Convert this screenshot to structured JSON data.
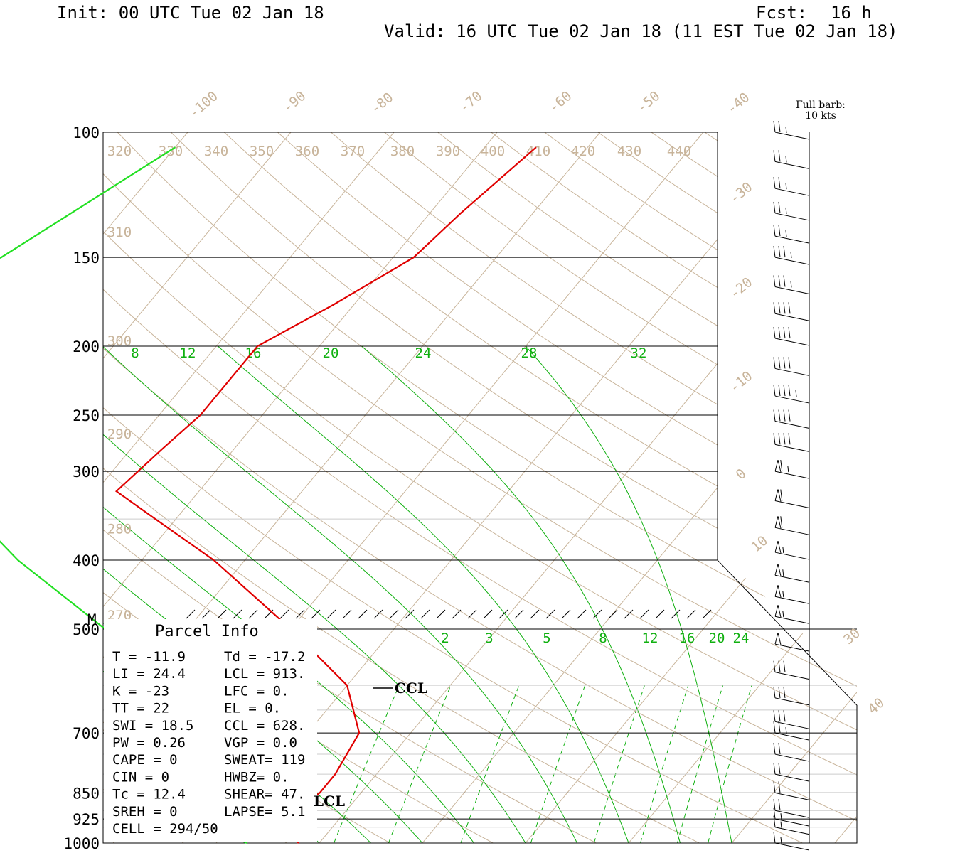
{
  "header": {
    "init": "Init: 00 UTC Tue 02 Jan 18",
    "fcst_label": "Fcst:",
    "fcst_value": "16 h",
    "valid": "Valid: 16 UTC Tue 02 Jan 18 (11 EST Tue 02 Jan 18)"
  },
  "barb_legend": {
    "line1": "Full barb:",
    "line2": "10 kts"
  },
  "parcel": {
    "title": "Parcel Info",
    "rows": [
      {
        "left": "T  =   -11.9",
        "right": "Td = -17.2"
      },
      {
        "left": "LI =    24.4",
        "right": "LCL =  913."
      },
      {
        "left": "K  =     -23",
        "right": "LFC =    0."
      },
      {
        "left": "TT =      22",
        "right": "EL  =    0."
      },
      {
        "left": "SWI =   18.5",
        "right": "CCL =  628."
      },
      {
        "left": "PW =    0.26",
        "right": "VGP =   0.0"
      },
      {
        "left": "CAPE =     0",
        "right": "SWEAT=  119"
      },
      {
        "left": "CIN =      0",
        "right": "HWBZ=    0."
      },
      {
        "left": "Tc =    12.4",
        "right": "SHEAR=  47."
      },
      {
        "left": "SREH =     0",
        "right": "LAPSE=  5.1"
      },
      {
        "left": "CELL = 294/50",
        "right": ""
      }
    ],
    "ccl_label": "CCL",
    "lcl_label": "LCL",
    "marker_m": "M"
  },
  "colors": {
    "temperature": "#e00000",
    "dewpoint": "#22e022",
    "isotherm": "#c8b49a",
    "mixing_ratio": "#10b010",
    "grid": "#000000"
  },
  "chart_data": {
    "type": "skew-t",
    "pressure_levels_labeled": [
      100,
      150,
      200,
      250,
      300,
      400,
      500,
      700,
      850,
      925,
      1000
    ],
    "isotherm_labels": [
      -100,
      -90,
      -80,
      -70,
      -60,
      -50,
      -40,
      -30,
      -20,
      -10,
      0,
      10,
      30,
      40
    ],
    "theta_labels": [
      {
        "value": "320",
        "p": 100
      },
      {
        "value": "330",
        "p": 100
      },
      {
        "value": "340",
        "p": 100
      },
      {
        "value": "350",
        "p": 100
      },
      {
        "value": "360",
        "p": 100
      },
      {
        "value": "370",
        "p": 100
      },
      {
        "value": "380",
        "p": 100
      },
      {
        "value": "390",
        "p": 100
      },
      {
        "value": "400",
        "p": 100
      },
      {
        "value": "410",
        "p": 100
      },
      {
        "value": "420",
        "p": 100
      },
      {
        "value": "430",
        "p": 100
      },
      {
        "value": "440",
        "p": 100
      },
      {
        "value": "310",
        "p": 130
      },
      {
        "value": "300",
        "p": 185
      },
      {
        "value": "290",
        "p": 250
      },
      {
        "value": "280",
        "p": 340
      },
      {
        "value": "270",
        "p": 450
      }
    ],
    "mixing_ratio_upper_labels": [
      "8",
      "12",
      "16",
      "20",
      "24",
      "28",
      "32"
    ],
    "mixing_ratio_lower_labels": [
      "2",
      "3",
      "5",
      "8",
      "12",
      "16",
      "20",
      "24"
    ],
    "temperature_profile": [
      {
        "p": 105,
        "t": -45
      },
      {
        "p": 130,
        "t": -47
      },
      {
        "p": 150,
        "t": -48
      },
      {
        "p": 175,
        "t": -52
      },
      {
        "p": 200,
        "t": -56
      },
      {
        "p": 250,
        "t": -56
      },
      {
        "p": 280,
        "t": -57
      },
      {
        "p": 320,
        "t": -58
      },
      {
        "p": 350,
        "t": -52
      },
      {
        "p": 400,
        "t": -43
      },
      {
        "p": 500,
        "t": -30
      },
      {
        "p": 600,
        "t": -20
      },
      {
        "p": 700,
        "t": -15
      },
      {
        "p": 800,
        "t": -14
      },
      {
        "p": 850,
        "t": -14
      },
      {
        "p": 900,
        "t": -15
      },
      {
        "p": 925,
        "t": -17
      },
      {
        "p": 1000,
        "t": -12
      }
    ],
    "dewpoint_profile": [
      {
        "p": 105,
        "t": -80
      },
      {
        "p": 150,
        "t": -88
      },
      {
        "p": 200,
        "t": -102
      },
      {
        "p": 240,
        "t": -92
      },
      {
        "p": 280,
        "t": -85
      },
      {
        "p": 320,
        "t": -74
      },
      {
        "p": 400,
        "t": -62
      },
      {
        "p": 500,
        "t": -48
      },
      {
        "p": 600,
        "t": -36
      },
      {
        "p": 700,
        "t": -30
      },
      {
        "p": 800,
        "t": -27
      },
      {
        "p": 850,
        "t": -28
      },
      {
        "p": 925,
        "t": -25
      },
      {
        "p": 1000,
        "t": -17
      }
    ],
    "winds": [
      {
        "p": 100,
        "spd": 25
      },
      {
        "p": 110,
        "spd": 25
      },
      {
        "p": 120,
        "spd": 25
      },
      {
        "p": 130,
        "spd": 25
      },
      {
        "p": 140,
        "spd": 25
      },
      {
        "p": 150,
        "spd": 35
      },
      {
        "p": 165,
        "spd": 35
      },
      {
        "p": 180,
        "spd": 40
      },
      {
        "p": 195,
        "spd": 40
      },
      {
        "p": 215,
        "spd": 40
      },
      {
        "p": 235,
        "spd": 45
      },
      {
        "p": 255,
        "spd": 40
      },
      {
        "p": 275,
        "spd": 40
      },
      {
        "p": 300,
        "spd": 65
      },
      {
        "p": 330,
        "spd": 60
      },
      {
        "p": 360,
        "spd": 60
      },
      {
        "p": 390,
        "spd": 55
      },
      {
        "p": 420,
        "spd": 55
      },
      {
        "p": 450,
        "spd": 55
      },
      {
        "p": 480,
        "spd": 55
      },
      {
        "p": 525,
        "spd": 50
      },
      {
        "p": 575,
        "spd": 30
      },
      {
        "p": 625,
        "spd": 30
      },
      {
        "p": 675,
        "spd": 30
      },
      {
        "p": 700,
        "spd": 25
      },
      {
        "p": 750,
        "spd": 20
      },
      {
        "p": 800,
        "spd": 20
      },
      {
        "p": 850,
        "spd": 20
      },
      {
        "p": 900,
        "spd": 20
      },
      {
        "p": 925,
        "spd": 15
      },
      {
        "p": 950,
        "spd": 15
      },
      {
        "p": 1000,
        "spd": 15
      }
    ]
  }
}
